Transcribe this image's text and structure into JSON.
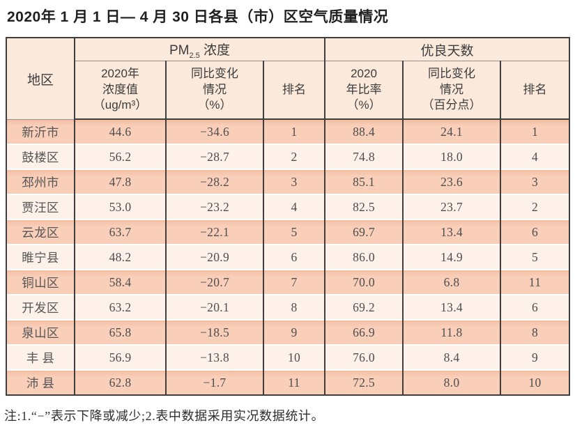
{
  "page": {
    "title": "2020年 1 月 1 日— 4 月 30 日各县（市）区空气质量情况",
    "note": "注:1.“−”表示下降或减少;2.表中数据采用实况数据统计。"
  },
  "table": {
    "headers": {
      "region": "地区",
      "pm_group": {
        "prefix": "PM",
        "sub": "2.5",
        "suffix": " 浓度"
      },
      "good_days_group": "优良天数",
      "pm_value": "2020年\n浓度值\n（ug/m³）",
      "pm_change": "同比变化\n情况\n（%）",
      "pm_rank": "排名",
      "good_rate": "2020\n年比率\n（%）",
      "good_change": "同比变化\n情况\n（百分点）",
      "good_rank": "排名"
    },
    "rows": [
      {
        "region": "新沂市",
        "pm_value": "44.6",
        "pm_change": "−34.6",
        "pm_rank": "1",
        "good_rate": "88.4",
        "good_change": "24.1",
        "good_rank": "1"
      },
      {
        "region": "鼓楼区",
        "pm_value": "56.2",
        "pm_change": "−28.7",
        "pm_rank": "2",
        "good_rate": "74.8",
        "good_change": "18.0",
        "good_rank": "4"
      },
      {
        "region": "邳州市",
        "pm_value": "47.8",
        "pm_change": "−28.2",
        "pm_rank": "3",
        "good_rate": "85.1",
        "good_change": "23.6",
        "good_rank": "3"
      },
      {
        "region": "贾汪区",
        "pm_value": "53.0",
        "pm_change": "−23.2",
        "pm_rank": "4",
        "good_rate": "82.5",
        "good_change": "23.7",
        "good_rank": "2"
      },
      {
        "region": "云龙区",
        "pm_value": "63.7",
        "pm_change": "−22.1",
        "pm_rank": "5",
        "good_rate": "69.7",
        "good_change": "13.4",
        "good_rank": "6"
      },
      {
        "region": "睢宁县",
        "pm_value": "48.2",
        "pm_change": "−20.9",
        "pm_rank": "6",
        "good_rate": "86.0",
        "good_change": "14.9",
        "good_rank": "5"
      },
      {
        "region": "铜山区",
        "pm_value": "58.4",
        "pm_change": "−20.7",
        "pm_rank": "7",
        "good_rate": "70.0",
        "good_change": "6.8",
        "good_rank": "11"
      },
      {
        "region": "开发区",
        "pm_value": "63.2",
        "pm_change": "−20.1",
        "pm_rank": "8",
        "good_rate": "69.2",
        "good_change": "13.4",
        "good_rank": "6"
      },
      {
        "region": "泉山区",
        "pm_value": "65.8",
        "pm_change": "−18.5",
        "pm_rank": "9",
        "good_rate": "66.9",
        "good_change": "11.8",
        "good_rank": "8"
      },
      {
        "region": "丰 县",
        "pm_value": "56.9",
        "pm_change": "−13.8",
        "pm_rank": "10",
        "good_rate": "76.0",
        "good_change": "8.4",
        "good_rank": "9"
      },
      {
        "region": "沛 县",
        "pm_value": "62.8",
        "pm_change": "−1.7",
        "pm_rank": "11",
        "good_rate": "72.5",
        "good_change": "8.0",
        "good_rank": "10"
      }
    ]
  },
  "colors": {
    "row_salmon": "#f8ccb4",
    "row_light": "#fdf1ea",
    "header_bg": "#fbe9db",
    "border_dark": "#3e3e3e",
    "row_divider": "#ffffff",
    "group_divider": "#919191",
    "text": "#4d4d4d"
  }
}
